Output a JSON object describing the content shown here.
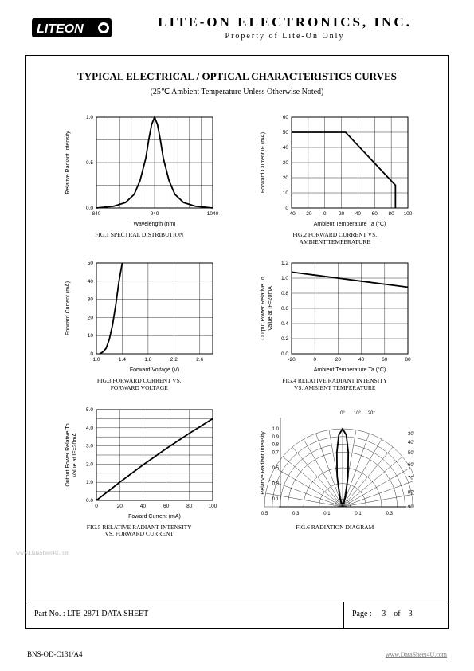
{
  "header": {
    "logo_text": "LITEON",
    "company": "LITE-ON ELECTRONICS, INC.",
    "property": "Property of Lite-On Only"
  },
  "section": {
    "title": "TYPICAL ELECTRICAL / OPTICAL CHARACTERISTICS CURVES",
    "subtitle": "(25℃  Ambient Temperature Unless Otherwise Noted)"
  },
  "charts": {
    "fig1": {
      "caption": "FIG.1  SPECTRAL DISTRIBUTION",
      "xlabel": "Wavelength (nm)",
      "ylabel": "Relative Radiant Intensity",
      "xlim": [
        840,
        1040
      ],
      "xtick_step": 20,
      "ylim": [
        0,
        1.0
      ],
      "ytick_step": 0.5,
      "yticks_minor": [
        0.25,
        0.75
      ],
      "grid_color": "#000",
      "curve": [
        [
          840,
          0
        ],
        [
          870,
          0.02
        ],
        [
          890,
          0.06
        ],
        [
          905,
          0.15
        ],
        [
          915,
          0.3
        ],
        [
          925,
          0.55
        ],
        [
          930,
          0.75
        ],
        [
          935,
          0.92
        ],
        [
          940,
          1.0
        ],
        [
          945,
          0.92
        ],
        [
          950,
          0.75
        ],
        [
          955,
          0.55
        ],
        [
          965,
          0.3
        ],
        [
          975,
          0.15
        ],
        [
          990,
          0.06
        ],
        [
          1010,
          0.02
        ],
        [
          1040,
          0
        ]
      ]
    },
    "fig2": {
      "caption": "FIG.2  FORWARD CURRENT VS.\nAMBIENT TEMPERATURE",
      "xlabel": "Ambient Temperature Ta (°C)",
      "ylabel": "Forward Current IF (mA)",
      "xlim": [
        -40,
        100
      ],
      "xtick_step": 20,
      "ylim": [
        0,
        60
      ],
      "ytick_step": 10,
      "grid_color": "#000",
      "curve": [
        [
          -40,
          50
        ],
        [
          25,
          50
        ],
        [
          85,
          15
        ],
        [
          85,
          0
        ]
      ]
    },
    "fig3": {
      "caption": "FIG.3  FORWARD CURRENT VS.\nFORWARD VOLTAGE",
      "xlabel": "Forward Voltage (V)",
      "ylabel": "Forward Current (mA)",
      "xlim": [
        1.0,
        2.8
      ],
      "xtick_step": 0.4,
      "ylim": [
        0,
        50
      ],
      "ytick_step": 10,
      "grid_color": "#000",
      "curve": [
        [
          1.05,
          0
        ],
        [
          1.1,
          1
        ],
        [
          1.15,
          3
        ],
        [
          1.2,
          8
        ],
        [
          1.25,
          16
        ],
        [
          1.3,
          27
        ],
        [
          1.35,
          40
        ],
        [
          1.4,
          50
        ]
      ]
    },
    "fig4": {
      "caption": "FIG.4  RELATIVE RADIANT INTENSITY\nVS. AMBIENT TEMPERATURE",
      "xlabel": "Ambient Temperature Ta (°C)",
      "ylabel": "Output Power Relative To\nValue at IF=20mA",
      "xlim": [
        -20,
        80
      ],
      "xtick_step": 20,
      "ylim": [
        0,
        1.2
      ],
      "ytick_step": 0.2,
      "grid_color": "#000",
      "curve": [
        [
          -20,
          1.08
        ],
        [
          0,
          1.04
        ],
        [
          20,
          1.0
        ],
        [
          40,
          0.96
        ],
        [
          60,
          0.92
        ],
        [
          80,
          0.88
        ]
      ]
    },
    "fig5": {
      "caption": "FIG.5  RELATIVE RADIANT INTENSITY\nVS. FORWARD CURRENT",
      "xlabel": "Foward Current (mA)",
      "ylabel": "Output Power Relative To\nValue at IF=20mA",
      "xlim": [
        0,
        100
      ],
      "xtick_step": 20,
      "ylim": [
        0,
        5.0
      ],
      "ytick_step": 1.0,
      "yticks_minor_step": 0.5,
      "grid_color": "#000",
      "curve": [
        [
          0,
          0
        ],
        [
          20,
          1.0
        ],
        [
          40,
          1.95
        ],
        [
          60,
          2.85
        ],
        [
          80,
          3.7
        ],
        [
          100,
          4.5
        ]
      ]
    },
    "fig6": {
      "caption": "FIG.6  RADIATION DIAGRAM",
      "ylabel": "Relative Radiant Intensity",
      "angles": [
        0,
        10,
        20,
        30,
        40,
        50,
        60,
        70,
        80,
        90
      ],
      "radii": [
        0.1,
        0.3,
        0.5,
        0.7,
        0.8,
        0.9,
        1.0
      ],
      "radii_labels": [
        "0.5",
        "0.3",
        "0.1",
        "0.1",
        "0.3",
        "0.5"
      ],
      "grid_color": "#000",
      "lobe": [
        [
          -20,
          0.05
        ],
        [
          -15,
          0.15
        ],
        [
          -10,
          0.4
        ],
        [
          -6,
          0.7
        ],
        [
          -3,
          0.92
        ],
        [
          0,
          1.0
        ],
        [
          3,
          0.92
        ],
        [
          6,
          0.7
        ],
        [
          10,
          0.4
        ],
        [
          15,
          0.15
        ],
        [
          20,
          0.05
        ]
      ]
    }
  },
  "footer": {
    "part": "Part No. : LTE-2871 DATA SHEET",
    "page_label": "Page :",
    "page_num": "3",
    "page_of": "of",
    "page_total": "3"
  },
  "doc_code": "BNS-OD-C131/A4",
  "watermark_right": "www.DataSheet4U.com",
  "watermark_left": "www.DataSheet4U.com",
  "style": {
    "line_width": 1.8,
    "axis_color": "#000000",
    "tick_font": 6.5
  }
}
